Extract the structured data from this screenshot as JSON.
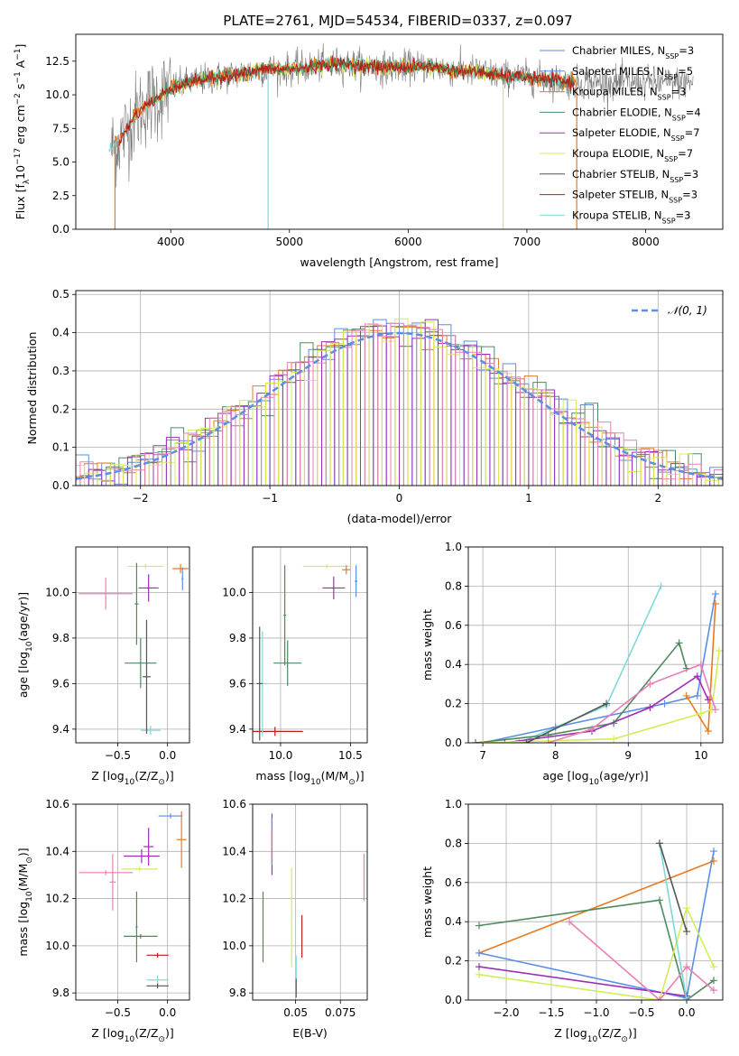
{
  "figure": {
    "title": "PLATE=2761, MJD=54534, FIBERID=0337, z=0.097"
  },
  "colors": {
    "Chabrier MILES": "#5b8ee6",
    "Salpeter MILES": "#5b8ee6",
    "Kroupa MILES": "#e87b1e",
    "Chabrier ELODIE": "#4e8a5f",
    "Salpeter ELODIE": "#9b30b5",
    "Kroupa ELODIE": "#d4ec58",
    "Chabrier STELIB": "#808080",
    "Salpeter STELIB": "#b31e1e",
    "Kroupa STELIB": "#7fd8d8",
    "pink": "#e87fb5"
  },
  "chart_data": [
    {
      "id": "spectrum",
      "type": "line",
      "xlabel": "wavelength [Angstrom, rest frame]",
      "ylabel": "Flux [f",
      "ylabel_parts": [
        "Flux [f",
        "λ",
        "10",
        "−17",
        " erg cm",
        "−2",
        " s",
        "−1",
        " A",
        "−1",
        "]"
      ],
      "xlim": [
        3200,
        8650
      ],
      "ylim": [
        0,
        14.5
      ],
      "xticks": [
        4000,
        5000,
        6000,
        7000,
        8000
      ],
      "yticks": [
        0.0,
        2.5,
        5.0,
        7.5,
        10.0,
        12.5
      ],
      "grid": false,
      "legend_position": "right",
      "legend": [
        {
          "name": "Chabrier MILES, N",
          "sub": "SSP",
          "tail": "=3",
          "color": "#5b8ee6"
        },
        {
          "name": "Salpeter MILES, N",
          "sub": "SSP",
          "tail": "=5",
          "color": "#5b8ee6"
        },
        {
          "name": "Kroupa MILES, N",
          "sub": "SSP",
          "tail": "=3",
          "color": "#e87b1e"
        },
        {
          "name": "Chabrier ELODIE, N",
          "sub": "SSP",
          "tail": "=4",
          "color": "#4e8a5f"
        },
        {
          "name": "Salpeter ELODIE, N",
          "sub": "SSP",
          "tail": "=7",
          "color": "#9b30b5"
        },
        {
          "name": "Kroupa ELODIE, N",
          "sub": "SSP",
          "tail": "=7",
          "color": "#d4ec58"
        },
        {
          "name": "Chabrier STELIB, N",
          "sub": "SSP",
          "tail": "=3",
          "color": "#555555"
        },
        {
          "name": "Salpeter STELIB, N",
          "sub": "SSP",
          "tail": "=3",
          "color": "#b31e1e"
        },
        {
          "name": "Kroupa STELIB, N",
          "sub": "SSP",
          "tail": "=3",
          "color": "#7fd8d8"
        }
      ],
      "continuum": [
        [
          3500,
          6.0
        ],
        [
          3600,
          7.0
        ],
        [
          3700,
          8.5
        ],
        [
          3800,
          9.3
        ],
        [
          3900,
          9.8
        ],
        [
          4000,
          10.5
        ],
        [
          4200,
          11.0
        ],
        [
          4400,
          11.3
        ],
        [
          4600,
          11.6
        ],
        [
          4800,
          11.9
        ],
        [
          5000,
          11.9
        ],
        [
          5200,
          12.1
        ],
        [
          5400,
          12.3
        ],
        [
          5600,
          12.2
        ],
        [
          5800,
          12.0
        ],
        [
          6000,
          12.1
        ],
        [
          6200,
          12.1
        ],
        [
          6400,
          11.8
        ],
        [
          6600,
          11.7
        ],
        [
          6800,
          11.4
        ],
        [
          7000,
          11.3
        ],
        [
          7200,
          11.1
        ],
        [
          7400,
          10.9
        ]
      ],
      "observed_range": [
        3500,
        8400
      ],
      "model_ranges": [
        {
          "color": "#7fd8d8",
          "x": [
            3480,
            7400
          ],
          "drop": 4820
        },
        {
          "color": "#d4ec58",
          "x": [
            3900,
            6800
          ],
          "drop": 6800
        },
        {
          "color": "#e87b1e",
          "x": [
            3530,
            7420
          ],
          "drop": 7420
        },
        {
          "color": "#4e8a5f",
          "x": [
            3800,
            7400
          ],
          "drop": null
        },
        {
          "color": "#b31e1e",
          "x": [
            3560,
            7400
          ],
          "drop": null
        }
      ]
    },
    {
      "id": "residual-hist",
      "type": "histogram",
      "xlabel": "(data-model)/error",
      "ylabel": "Normed distribution",
      "xlim": [
        -2.5,
        2.5
      ],
      "ylim": [
        0.0,
        0.51
      ],
      "xticks": [
        -2,
        -1,
        0,
        1,
        2
      ],
      "yticks": [
        0.0,
        0.1,
        0.2,
        0.3,
        0.4,
        0.5
      ],
      "grid": true,
      "legend_position": "top-right",
      "legend": [
        {
          "name": "𝒩(0, 1)",
          "style": "dashed",
          "color": "#5b8ee6"
        }
      ],
      "series_colors": [
        "#5b8ee6",
        "#e87b1e",
        "#4e8a5f",
        "#9b30b5",
        "#d4ec58",
        "#e87fb5"
      ]
    },
    {
      "id": "age-vs-z",
      "type": "errorbar",
      "xlabel": "Z [log",
      "xlabel_parts": [
        "Z [log",
        "10",
        "(Z/Z",
        "⊙",
        ")]"
      ],
      "ylabel": "age  [log",
      "ylabel_parts": [
        "age  [log",
        "10",
        "(age/yr)]"
      ],
      "xlim": [
        -0.92,
        0.22
      ],
      "ylim": [
        9.34,
        10.2
      ],
      "xticks": [
        -0.5,
        0.0
      ],
      "xticklabels": [
        "−0.5",
        "0.0"
      ],
      "yticks": [
        9.4,
        9.6,
        9.8,
        10.0
      ],
      "points": [
        {
          "x": -0.62,
          "xerr": 0.27,
          "y": 9.995,
          "yerr": 0.07,
          "color": "#e87fb5"
        },
        {
          "x": -0.22,
          "xerr": 0.18,
          "y": 10.115,
          "yerr": 0.01,
          "color": "#d4ec58"
        },
        {
          "x": -0.19,
          "xerr": 0.1,
          "y": 10.02,
          "yerr": 0.06,
          "color": "#9b30b5"
        },
        {
          "x": 0.13,
          "xerr": 0.08,
          "y": 10.105,
          "yerr": 0.02,
          "color": "#e87b1e"
        },
        {
          "x": 0.15,
          "xerr": 0.01,
          "y": 10.06,
          "yerr": 0.05,
          "color": "#5b8ee6"
        },
        {
          "x": -0.27,
          "xerr": 0.16,
          "y": 9.69,
          "yerr": 0.11,
          "color": "#4e8a5f"
        },
        {
          "x": -0.31,
          "xerr": 0.02,
          "y": 9.95,
          "yerr": 0.18,
          "color": "#4e8a5f"
        },
        {
          "x": -0.17,
          "xerr": 0.1,
          "y": 9.395,
          "yerr": 0.02,
          "color": "#7fd8d8"
        },
        {
          "x": -0.21,
          "xerr": 0.04,
          "y": 9.63,
          "yerr": 0.25,
          "color": "#555555"
        }
      ]
    },
    {
      "id": "age-vs-mass",
      "type": "errorbar",
      "xlabel": "mass [log",
      "xlabel_parts": [
        "mass [log",
        "10",
        "(M/M",
        "⊙",
        ")]"
      ],
      "xlim": [
        9.8,
        10.62
      ],
      "ylim": [
        9.34,
        10.2
      ],
      "xticks": [
        10.0,
        10.5
      ],
      "yticks": [
        9.4,
        9.6,
        9.8,
        10.0
      ],
      "points": [
        {
          "x": 10.33,
          "xerr": 0.17,
          "y": 10.115,
          "yerr": 0.01,
          "color": "#d4ec58"
        },
        {
          "x": 10.38,
          "xerr": 0.08,
          "y": 10.02,
          "yerr": 0.05,
          "color": "#9b30b5"
        },
        {
          "x": 10.47,
          "xerr": 0.03,
          "y": 10.1,
          "yerr": 0.02,
          "color": "#e87b1e"
        },
        {
          "x": 10.54,
          "xerr": 0.01,
          "y": 10.05,
          "yerr": 0.07,
          "color": "#5b8ee6"
        },
        {
          "x": 10.05,
          "xerr": 0.1,
          "y": 9.69,
          "yerr": 0.1,
          "color": "#4e8a5f"
        },
        {
          "x": 10.03,
          "xerr": 0.01,
          "y": 9.9,
          "yerr": 0.22,
          "color": "#4e8a5f"
        },
        {
          "x": 9.96,
          "xerr": 0.2,
          "y": 9.39,
          "yerr": 0.02,
          "color": "#b31e1e"
        },
        {
          "x": 9.87,
          "xerr": 0.03,
          "y": 9.6,
          "yerr": 0.23,
          "color": "#7fd8d8"
        },
        {
          "x": 9.85,
          "xerr": 0.02,
          "y": 9.6,
          "yerr": 0.25,
          "color": "#555555"
        }
      ]
    },
    {
      "id": "mw-vs-age",
      "type": "line",
      "xlabel": "age  [log",
      "xlabel_parts": [
        "age  [log",
        "10",
        "(age/yr)]"
      ],
      "ylabel": "mass weight",
      "xlim": [
        6.8,
        10.3
      ],
      "ylim": [
        0.0,
        1.0
      ],
      "xticks": [
        7,
        8,
        9,
        10
      ],
      "yticks": [
        0.0,
        0.2,
        0.4,
        0.6,
        0.8,
        1.0
      ],
      "grid": true,
      "series": [
        {
          "color": "#7fd8d8",
          "x": [
            7.5,
            8.7,
            9.45
          ],
          "y": [
            0.0,
            0.19,
            0.8
          ]
        },
        {
          "color": "#5b8ee6",
          "x": [
            7.0,
            8.0,
            9.5,
            9.95,
            10.2
          ],
          "y": [
            0.0,
            0.08,
            0.2,
            0.24,
            0.76
          ]
        },
        {
          "color": "#e87b1e",
          "x": [
            9.8,
            10.1,
            10.2
          ],
          "y": [
            0.24,
            0.06,
            0.71
          ]
        },
        {
          "color": "#4e8a5f",
          "x": [
            6.9,
            7.9,
            8.8,
            9.7,
            9.8
          ],
          "y": [
            0.0,
            0.04,
            0.1,
            0.51,
            0.38
          ]
        },
        {
          "color": "#9b30b5",
          "x": [
            7.3,
            8.5,
            9.3,
            9.95,
            10.1
          ],
          "y": [
            0.0,
            0.06,
            0.18,
            0.34,
            0.22
          ]
        },
        {
          "color": "#d4ec58",
          "x": [
            7.0,
            8.8,
            10.0,
            10.15,
            10.25
          ],
          "y": [
            0.0,
            0.02,
            0.15,
            0.17,
            0.47
          ]
        },
        {
          "color": "#e87fb5",
          "x": [
            7.9,
            8.5,
            9.3,
            10.0,
            10.2
          ],
          "y": [
            0.0,
            0.07,
            0.3,
            0.4,
            0.17
          ]
        },
        {
          "color": "#555555",
          "x": [
            7.6,
            8.7
          ],
          "y": [
            0.0,
            0.2
          ]
        }
      ]
    },
    {
      "id": "mass-vs-z",
      "type": "errorbar",
      "xlabel": "Z [log",
      "xlabel_parts": [
        "Z [log",
        "10",
        "(Z/Z",
        "⊙",
        ")]"
      ],
      "ylabel": "mass [log",
      "ylabel_parts": [
        "mass [log",
        "10",
        "(M/M",
        "⊙",
        ")]"
      ],
      "xlim": [
        -0.92,
        0.22
      ],
      "ylim": [
        9.77,
        10.6
      ],
      "xticks": [
        -0.5,
        0.0
      ],
      "xticklabels": [
        "−0.5",
        "0.0"
      ],
      "yticks": [
        9.8,
        10.0,
        10.2,
        10.4,
        10.6
      ],
      "points": [
        {
          "x": 0.03,
          "xerr": 0.12,
          "y": 10.55,
          "yerr": 0.01,
          "color": "#5b8ee6"
        },
        {
          "x": 0.14,
          "xerr": 0.05,
          "y": 10.45,
          "yerr": 0.12,
          "color": "#e87b1e"
        },
        {
          "x": -0.26,
          "xerr": 0.18,
          "y": 10.38,
          "yerr": 0.03,
          "color": "#9b30b5"
        },
        {
          "x": -0.19,
          "xerr": 0.05,
          "y": 10.42,
          "yerr": 0.08,
          "color": "#9b30b5"
        },
        {
          "x": -0.62,
          "xerr": 0.27,
          "y": 10.31,
          "yerr": 0.01,
          "color": "#e87fb5"
        },
        {
          "x": -0.55,
          "xerr": 0.03,
          "y": 10.27,
          "yerr": 0.12,
          "color": "#e87fb5"
        },
        {
          "x": -0.28,
          "xerr": 0.18,
          "y": 10.325,
          "yerr": 0.01,
          "color": "#d4ec58"
        },
        {
          "x": -0.27,
          "xerr": 0.17,
          "y": 10.04,
          "yerr": 0.01,
          "color": "#4e8a5f"
        },
        {
          "x": -0.31,
          "xerr": 0.01,
          "y": 10.08,
          "yerr": 0.15,
          "color": "#4e8a5f"
        },
        {
          "x": -0.1,
          "xerr": 0.11,
          "y": 9.96,
          "yerr": 0.01,
          "color": "#b31e1e"
        },
        {
          "x": -0.1,
          "xerr": 0.11,
          "y": 9.855,
          "yerr": 0.02,
          "color": "#7fd8d8"
        },
        {
          "x": -0.1,
          "xerr": 0.11,
          "y": 9.83,
          "yerr": 0.01,
          "color": "#555555"
        }
      ]
    },
    {
      "id": "mass-vs-ebv",
      "type": "errorbar",
      "xlabel": "E(B-V)",
      "xlim": [
        0.026,
        0.09
      ],
      "ylim": [
        9.77,
        10.6
      ],
      "xticks": [
        0.05,
        0.075
      ],
      "yticks": [
        9.8,
        10.0,
        10.2,
        10.4,
        10.6
      ],
      "points": [
        {
          "x": 0.0368,
          "xerr": 0.0,
          "y": 10.43,
          "yerr": 0.13,
          "color": "#9b30b5"
        },
        {
          "x": 0.0368,
          "xerr": 0.0,
          "y": 10.44,
          "yerr": 0.1,
          "color": "#5b8ee6"
        },
        {
          "x": 0.0368,
          "xerr": 0.0,
          "y": 10.42,
          "yerr": 0.07,
          "color": "#e87b1e"
        },
        {
          "x": 0.0882,
          "xerr": 0.0,
          "y": 10.29,
          "yerr": 0.1,
          "color": "#e87fb5"
        },
        {
          "x": 0.0478,
          "xerr": 0.0,
          "y": 10.12,
          "yerr": 0.21,
          "color": "#d4ec58"
        },
        {
          "x": 0.0318,
          "xerr": 0.0,
          "y": 10.08,
          "yerr": 0.15,
          "color": "#4e8a5f"
        },
        {
          "x": 0.0535,
          "xerr": 0.0,
          "y": 10.04,
          "yerr": 0.09,
          "color": "#b31e1e"
        },
        {
          "x": 0.0503,
          "xerr": 0.0,
          "y": 9.88,
          "yerr": 0.08,
          "color": "#7fd8d8"
        },
        {
          "x": 0.0503,
          "xerr": 0.0,
          "y": 9.82,
          "yerr": 0.04,
          "color": "#555555"
        }
      ]
    },
    {
      "id": "mw-vs-z",
      "type": "line",
      "xlabel": "Z [log",
      "xlabel_parts": [
        "Z [log",
        "10",
        "(Z/Z",
        "⊙",
        ")]"
      ],
      "ylabel": "mass weight",
      "xlim": [
        -2.42,
        0.4
      ],
      "ylim": [
        0.0,
        1.0
      ],
      "xticks": [
        -2.0,
        -1.5,
        -1.0,
        -0.5,
        0.0
      ],
      "xticklabels": [
        "−2.0",
        "−1.5",
        "−1.0",
        "−0.5",
        "0.0"
      ],
      "yticks": [
        0.0,
        0.2,
        0.4,
        0.6,
        0.8,
        1.0
      ],
      "grid": true,
      "series": [
        {
          "color": "#e87b1e",
          "x": [
            -2.3,
            0.3
          ],
          "y": [
            0.24,
            0.71
          ]
        },
        {
          "color": "#4e8a5f",
          "x": [
            -2.3,
            -0.3,
            0.0,
            0.3
          ],
          "y": [
            0.38,
            0.51,
            0.0,
            0.1
          ]
        },
        {
          "color": "#5b8ee6",
          "x": [
            -2.3,
            0.0,
            0.3
          ],
          "y": [
            0.24,
            0.01,
            0.76
          ]
        },
        {
          "color": "#9b30b5",
          "x": [
            -2.3,
            0.0
          ],
          "y": [
            0.17,
            0.02
          ]
        },
        {
          "color": "#d4ec58",
          "x": [
            -2.3,
            -0.3,
            0.0,
            0.3
          ],
          "y": [
            0.13,
            0.0,
            0.47,
            0.17
          ]
        },
        {
          "color": "#e87fb5",
          "x": [
            -1.3,
            -0.3,
            0.0,
            0.3
          ],
          "y": [
            0.4,
            0.0,
            0.17,
            0.05
          ]
        },
        {
          "color": "#7fd8d8",
          "x": [
            -0.3,
            0.0
          ],
          "y": [
            0.8,
            0.0
          ]
        },
        {
          "color": "#555555",
          "x": [
            -0.3,
            0.0
          ],
          "y": [
            0.8,
            0.35
          ]
        }
      ]
    }
  ]
}
